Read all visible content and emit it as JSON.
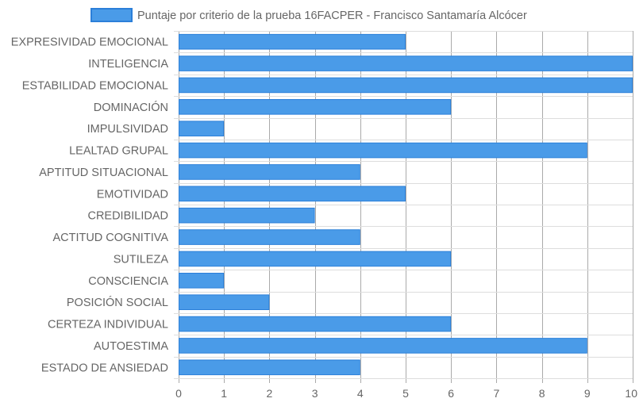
{
  "chart_data": {
    "type": "bar",
    "orientation": "horizontal",
    "categories": [
      "EXPRESIVIDAD EMOCIONAL",
      "INTELIGENCIA",
      "ESTABILIDAD EMOCIONAL",
      "DOMINACIÓN",
      "IMPULSIVIDAD",
      "LEALTAD GRUPAL",
      "APTITUD SITUACIONAL",
      "EMOTIVIDAD",
      "CREDIBILIDAD",
      "ACTITUD COGNITIVA",
      "SUTILEZA",
      "CONSCIENCIA",
      "POSICIÓN SOCIAL",
      "CERTEZA INDIVIDUAL",
      "AUTOESTIMA",
      "ESTADO DE ANSIEDAD"
    ],
    "series": [
      {
        "name": "Puntaje por criterio de la prueba 16FACPER - Francisco Santamaría Alcócer",
        "values": [
          5,
          10,
          10,
          6,
          1,
          9,
          4,
          5,
          3,
          4,
          6,
          1,
          2,
          6,
          9,
          4
        ]
      }
    ],
    "xlim": [
      0,
      10
    ],
    "xticks": [
      "0",
      "1",
      "2",
      "3",
      "4",
      "5",
      "6",
      "7",
      "8",
      "9",
      "10"
    ],
    "grid": true,
    "legend_position": "top",
    "colors": {
      "bar_fill": "#4a9be8",
      "bar_border": "#2b7fd9",
      "grid": "#dddddd",
      "grid_dark": "#aaaaaa"
    }
  }
}
